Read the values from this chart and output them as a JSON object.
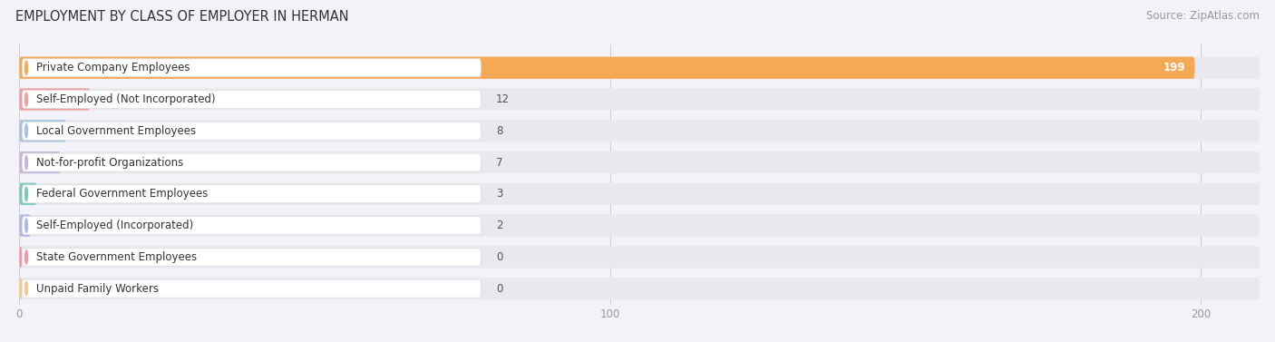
{
  "title": "EMPLOYMENT BY CLASS OF EMPLOYER IN HERMAN",
  "source": "Source: ZipAtlas.com",
  "categories": [
    "Private Company Employees",
    "Self-Employed (Not Incorporated)",
    "Local Government Employees",
    "Not-for-profit Organizations",
    "Federal Government Employees",
    "Self-Employed (Incorporated)",
    "State Government Employees",
    "Unpaid Family Workers"
  ],
  "values": [
    199,
    12,
    8,
    7,
    3,
    2,
    0,
    0
  ],
  "bar_colors": [
    "#f5a955",
    "#f0a0a0",
    "#aac4e0",
    "#c5b8d8",
    "#7ec8c0",
    "#b0b8e8",
    "#f598a8",
    "#f5c890"
  ],
  "xlim_max": 210,
  "xticks": [
    0,
    100,
    200
  ],
  "bg_color": "#f2f2f8",
  "track_color": "#e8e8ee",
  "title_fontsize": 10.5,
  "source_fontsize": 8.5,
  "label_fontsize": 8.5,
  "value_fontsize": 8.5
}
